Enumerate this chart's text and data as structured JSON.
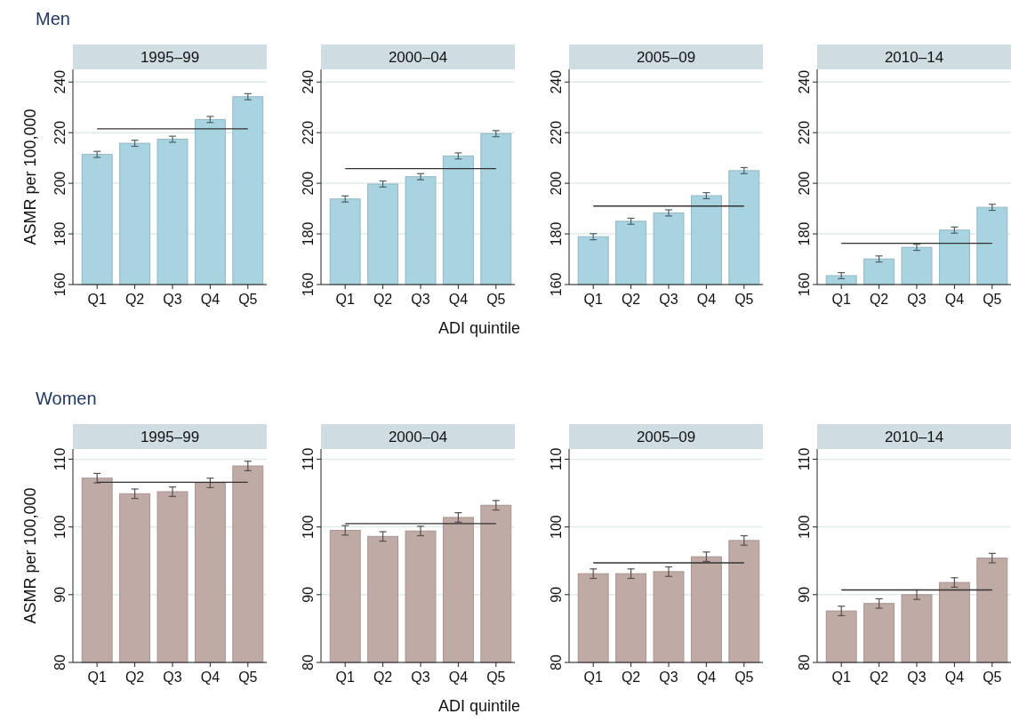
{
  "chart_data": [
    {
      "type": "bar",
      "title": "1995–99",
      "annotations": [
        "Men"
      ],
      "ylabel": "ASMR per 100,000",
      "categories": [
        "Q1",
        "Q2",
        "Q3",
        "Q4",
        "Q5"
      ],
      "values": [
        211.4,
        215.8,
        217.4,
        225.2,
        234.2
      ],
      "errors": [
        1.2,
        1.2,
        1.2,
        1.2,
        1.2
      ],
      "color": "#a8d3e0",
      "ylim": [
        160,
        245
      ],
      "yticks": [
        160,
        180,
        200,
        220,
        240
      ],
      "grid": "y",
      "ref_lines": [
        {
          "axis": "y",
          "value": 221.5,
          "color": "#333333"
        }
      ]
    },
    {
      "type": "bar",
      "title": "2000–04",
      "xlabel": "ADI quintile",
      "categories": [
        "Q1",
        "Q2",
        "Q3",
        "Q4",
        "Q5"
      ],
      "values": [
        193.8,
        199.7,
        202.6,
        210.8,
        219.6
      ],
      "errors": [
        1.2,
        1.2,
        1.2,
        1.2,
        1.2
      ],
      "color": "#a8d3e0",
      "ylim": [
        160,
        245
      ],
      "yticks": [
        160,
        180,
        200,
        220,
        240
      ],
      "grid": "y",
      "ref_lines": [
        {
          "axis": "y",
          "value": 205.8,
          "color": "#333333"
        }
      ]
    },
    {
      "type": "bar",
      "title": "2005–09",
      "categories": [
        "Q1",
        "Q2",
        "Q3",
        "Q4",
        "Q5"
      ],
      "values": [
        178.9,
        185.0,
        188.3,
        195.1,
        205.0
      ],
      "errors": [
        1.2,
        1.2,
        1.2,
        1.2,
        1.2
      ],
      "color": "#a8d3e0",
      "ylim": [
        160,
        245
      ],
      "yticks": [
        160,
        180,
        200,
        220,
        240
      ],
      "grid": "y",
      "ref_lines": [
        {
          "axis": "y",
          "value": 191.0,
          "color": "#333333"
        }
      ]
    },
    {
      "type": "bar",
      "title": "2010–14",
      "categories": [
        "Q1",
        "Q2",
        "Q3",
        "Q4",
        "Q5"
      ],
      "values": [
        163.5,
        170.1,
        174.7,
        181.5,
        190.5
      ],
      "errors": [
        1.2,
        1.2,
        1.2,
        1.2,
        1.2
      ],
      "color": "#a8d3e0",
      "ylim": [
        160,
        245
      ],
      "yticks": [
        160,
        180,
        200,
        220,
        240
      ],
      "grid": "y",
      "ref_lines": [
        {
          "axis": "y",
          "value": 176.3,
          "color": "#333333"
        }
      ]
    },
    {
      "type": "bar",
      "title": "1995–99",
      "annotations": [
        "Women"
      ],
      "ylabel": "ASMR per 100,000",
      "categories": [
        "Q1",
        "Q2",
        "Q3",
        "Q4",
        "Q5"
      ],
      "values": [
        107.2,
        104.9,
        105.2,
        106.5,
        109.0
      ],
      "errors": [
        0.7,
        0.7,
        0.7,
        0.7,
        0.7
      ],
      "color": "#c0aaa6",
      "ylim": [
        80,
        111.5
      ],
      "yticks": [
        80,
        90,
        100,
        110
      ],
      "grid": "y",
      "ref_lines": [
        {
          "axis": "y",
          "value": 106.6,
          "color": "#333333"
        }
      ]
    },
    {
      "type": "bar",
      "title": "2000–04",
      "xlabel": "ADI quintile",
      "categories": [
        "Q1",
        "Q2",
        "Q3",
        "Q4",
        "Q5"
      ],
      "values": [
        99.5,
        98.6,
        99.4,
        101.4,
        103.2
      ],
      "errors": [
        0.7,
        0.7,
        0.7,
        0.7,
        0.7
      ],
      "color": "#c0aaa6",
      "ylim": [
        80,
        111.5
      ],
      "yticks": [
        80,
        90,
        100,
        110
      ],
      "grid": "y",
      "ref_lines": [
        {
          "axis": "y",
          "value": 100.5,
          "color": "#333333"
        }
      ]
    },
    {
      "type": "bar",
      "title": "2005–09",
      "categories": [
        "Q1",
        "Q2",
        "Q3",
        "Q4",
        "Q5"
      ],
      "values": [
        93.1,
        93.1,
        93.4,
        95.6,
        98.0
      ],
      "errors": [
        0.7,
        0.7,
        0.7,
        0.7,
        0.7
      ],
      "color": "#c0aaa6",
      "ylim": [
        80,
        111.5
      ],
      "yticks": [
        80,
        90,
        100,
        110
      ],
      "grid": "y",
      "ref_lines": [
        {
          "axis": "y",
          "value": 94.7,
          "color": "#333333"
        }
      ]
    },
    {
      "type": "bar",
      "title": "2010–14",
      "categories": [
        "Q1",
        "Q2",
        "Q3",
        "Q4",
        "Q5"
      ],
      "values": [
        87.6,
        88.7,
        90.0,
        91.8,
        95.4
      ],
      "errors": [
        0.7,
        0.7,
        0.7,
        0.7,
        0.7
      ],
      "color": "#c0aaa6",
      "ylim": [
        80,
        111.5
      ],
      "yticks": [
        80,
        90,
        100,
        110
      ],
      "grid": "y",
      "ref_lines": [
        {
          "axis": "y",
          "value": 90.7,
          "color": "#333333"
        }
      ]
    }
  ]
}
